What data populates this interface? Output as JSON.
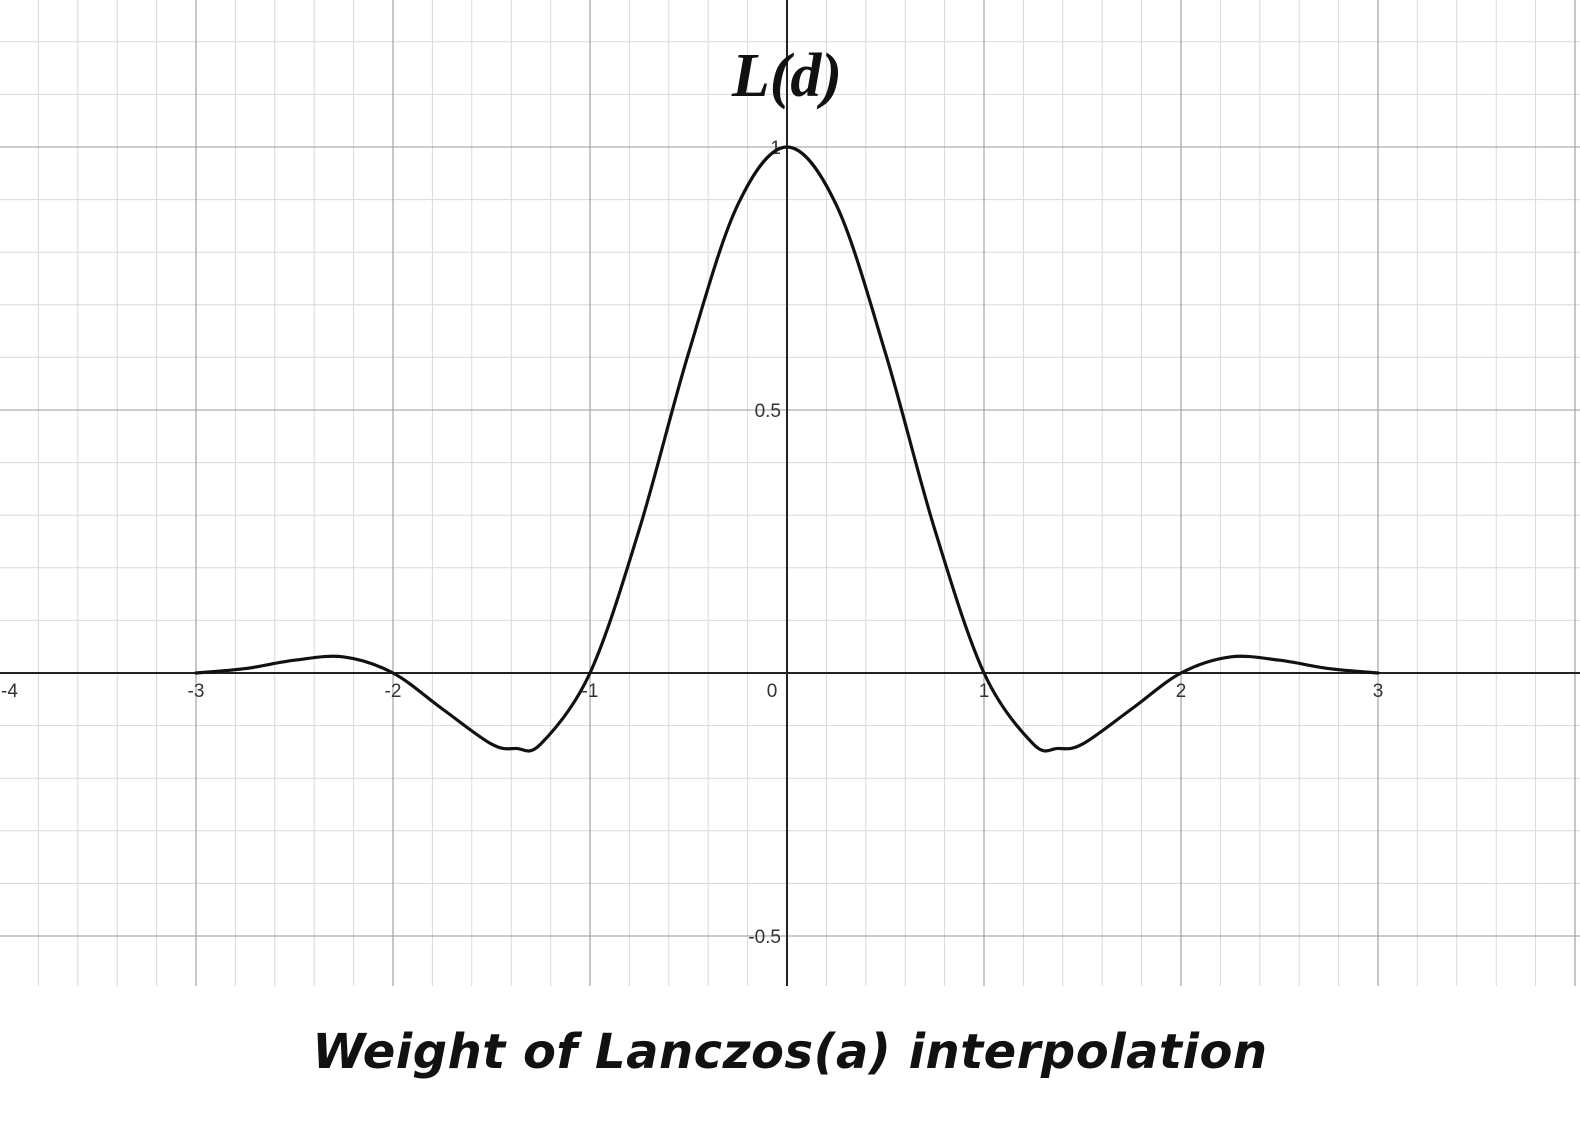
{
  "chart_data": {
    "type": "line",
    "title": "Weight of Lanczos(a) interpolation",
    "ylabel": "L(d)",
    "xlabel": "",
    "xlim": [
      -4,
      4
    ],
    "ylim": [
      -0.6,
      1.28
    ],
    "grid": true,
    "x_ticks": [
      "-4",
      "-3",
      "-2",
      "-1",
      "0",
      "1",
      "2",
      "3"
    ],
    "y_ticks": [
      "1",
      "0.5",
      "-0.5"
    ],
    "x_tick_values": [
      -4,
      -3,
      -2,
      -1,
      0,
      1,
      2,
      3
    ],
    "y_tick_values": [
      1,
      0.5,
      -0.5
    ],
    "series": [
      {
        "x": [
          -3,
          -2.75,
          -2.5,
          -2.25,
          -2,
          -1.75,
          -1.5,
          -1.375,
          -1.25,
          -1,
          -0.75,
          -0.5,
          -0.25,
          0,
          0.25,
          0.5,
          0.75,
          1,
          1.25,
          1.375,
          1.5,
          1.75,
          2,
          2.25,
          2.5,
          2.75,
          3
        ],
        "y": [
          0,
          0.0084,
          0.0243,
          0.0306,
          0,
          -0.0682,
          -0.1351,
          -0.1434,
          -0.135,
          0,
          0.2728,
          0.6079,
          0.89,
          1,
          0.89,
          0.6079,
          0.2728,
          0,
          -0.135,
          -0.1434,
          -0.1351,
          -0.0682,
          0,
          0.0306,
          0.0243,
          0.0084,
          0
        ],
        "color": "#111111"
      }
    ]
  }
}
